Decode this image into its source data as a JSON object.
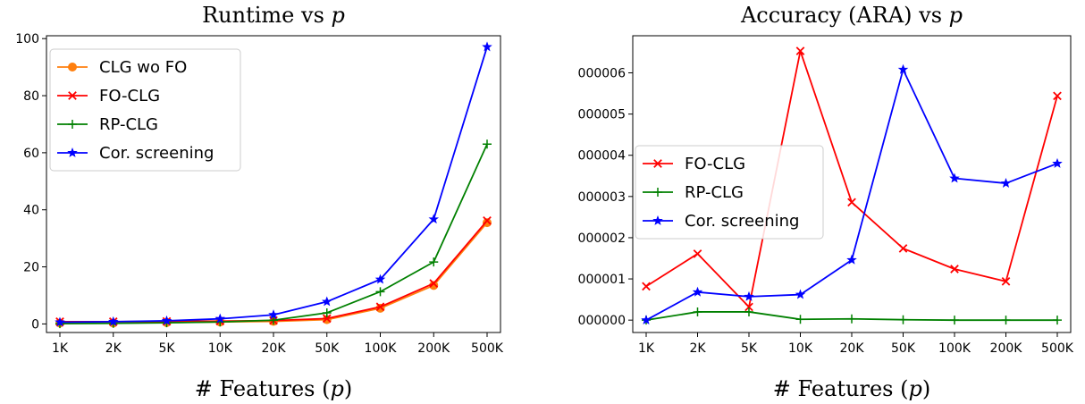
{
  "chart_data": [
    {
      "type": "line",
      "title": "Runtime vs p",
      "xlabel": "# Features (p)",
      "ylabel": "",
      "categories": [
        "1K",
        "2K",
        "5K",
        "10K",
        "20K",
        "50K",
        "100K",
        "200K",
        "500K"
      ],
      "ylim": [
        -3,
        101
      ],
      "yticks": [
        0,
        20,
        40,
        60,
        80,
        100
      ],
      "ytick_labels": [
        "0",
        "20",
        "40",
        "60",
        "80",
        "100"
      ],
      "grid": false,
      "legend_position": "upper-left",
      "series": [
        {
          "name": "CLG wo FO",
          "color": "#ff7f0e",
          "marker": "circle",
          "values": [
            0.3,
            0.3,
            0.5,
            0.7,
            0.9,
            1.5,
            5.5,
            13.5,
            35.5
          ]
        },
        {
          "name": "FO-CLG",
          "color": "#ff0000",
          "marker": "x",
          "values": [
            0.8,
            0.8,
            0.9,
            1.0,
            1.2,
            1.9,
            6.0,
            14.2,
            36.2
          ]
        },
        {
          "name": "RP-CLG",
          "color": "#008000",
          "marker": "plus",
          "values": [
            0.1,
            0.2,
            0.4,
            0.7,
            1.3,
            3.9,
            11.3,
            21.7,
            63.0
          ]
        },
        {
          "name": "Cor. screening",
          "color": "#0000ff",
          "marker": "star",
          "values": [
            0.6,
            0.8,
            1.1,
            1.8,
            3.2,
            7.8,
            15.6,
            36.7,
            97.1
          ]
        }
      ]
    },
    {
      "type": "line",
      "title": "Accuracy (ARA) vs p",
      "xlabel": "# Features (p)",
      "ylabel": "",
      "categories": [
        "1K",
        "2K",
        "5K",
        "10K",
        "20K",
        "50K",
        "100K",
        "200K",
        "500K"
      ],
      "ylim": [
        -3e-07,
        6.9e-06
      ],
      "yticks": [
        0,
        1e-06,
        2e-06,
        3e-06,
        4e-06,
        5e-06,
        6e-06
      ],
      "ytick_labels": [
        "000000",
        "000001",
        "000002",
        "000003",
        "000004",
        "000005",
        "000006"
      ],
      "grid": false,
      "legend_position": "center-left",
      "series": [
        {
          "name": "FO-CLG",
          "color": "#ff0000",
          "marker": "x",
          "values": [
            8.2e-07,
            1.61e-06,
            3.2e-07,
            6.53e-06,
            2.86e-06,
            1.74e-06,
            1.24e-06,
            9.4e-07,
            5.44e-06
          ]
        },
        {
          "name": "RP-CLG",
          "color": "#008000",
          "marker": "plus",
          "values": [
            0.0,
            2e-07,
            2e-07,
            2e-08,
            3e-08,
            1e-08,
            0.0,
            0.0,
            0.0
          ]
        },
        {
          "name": "Cor. screening",
          "color": "#0000ff",
          "marker": "star",
          "values": [
            0.0,
            6.8e-07,
            5.7e-07,
            6.2e-07,
            1.46e-06,
            6.08e-06,
            3.44e-06,
            3.32e-06,
            3.8e-06
          ]
        }
      ]
    }
  ]
}
